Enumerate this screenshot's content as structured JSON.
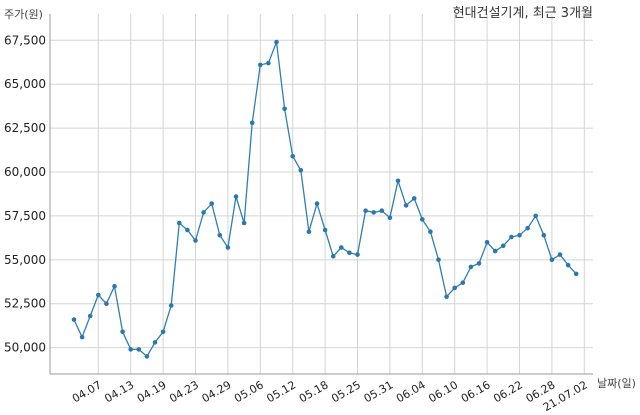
{
  "chart_data": {
    "type": "line",
    "title": "현대건설기계, 최근 3개월",
    "ylabel": "주가(원)",
    "xlabel": "날짜(일)",
    "ylim": [
      48500,
      68200
    ],
    "yticks": [
      50000,
      52500,
      55000,
      57500,
      60000,
      62500,
      65000,
      67500
    ],
    "ytick_labels": [
      "50,000",
      "52,500",
      "55,000",
      "57,500",
      "60,000",
      "62,500",
      "65,000",
      "67,500"
    ],
    "xtick_labels": [
      "04.07",
      "04.13",
      "04.19",
      "04.23",
      "04.29",
      "05.06",
      "05.12",
      "05.18",
      "05.25",
      "05.31",
      "06.04",
      "06.10",
      "06.16",
      "06.22",
      "06.28",
      "21.07.02"
    ],
    "xtick_index": [
      3,
      7,
      11,
      15,
      19,
      23,
      27,
      31,
      35,
      39,
      43,
      47,
      51,
      55,
      59,
      63
    ],
    "grid": true,
    "color": "#2f7fb3",
    "values": [
      51600,
      50600,
      51800,
      53000,
      52500,
      53500,
      50900,
      49900,
      49900,
      49500,
      50300,
      50900,
      52400,
      57100,
      56700,
      56100,
      57700,
      58200,
      56400,
      55700,
      58600,
      57100,
      62800,
      66100,
      66200,
      67400,
      63600,
      60900,
      60100,
      56600,
      58200,
      56700,
      55200,
      55700,
      55400,
      55300,
      57800,
      57700,
      57800,
      57400,
      59500,
      58100,
      58500,
      57300,
      56600,
      55000,
      52900,
      53400,
      53700,
      54600,
      54800,
      56000,
      55500,
      55800,
      56300,
      56400,
      56800,
      57500,
      56400,
      55000,
      55300,
      54700,
      54200
    ]
  }
}
